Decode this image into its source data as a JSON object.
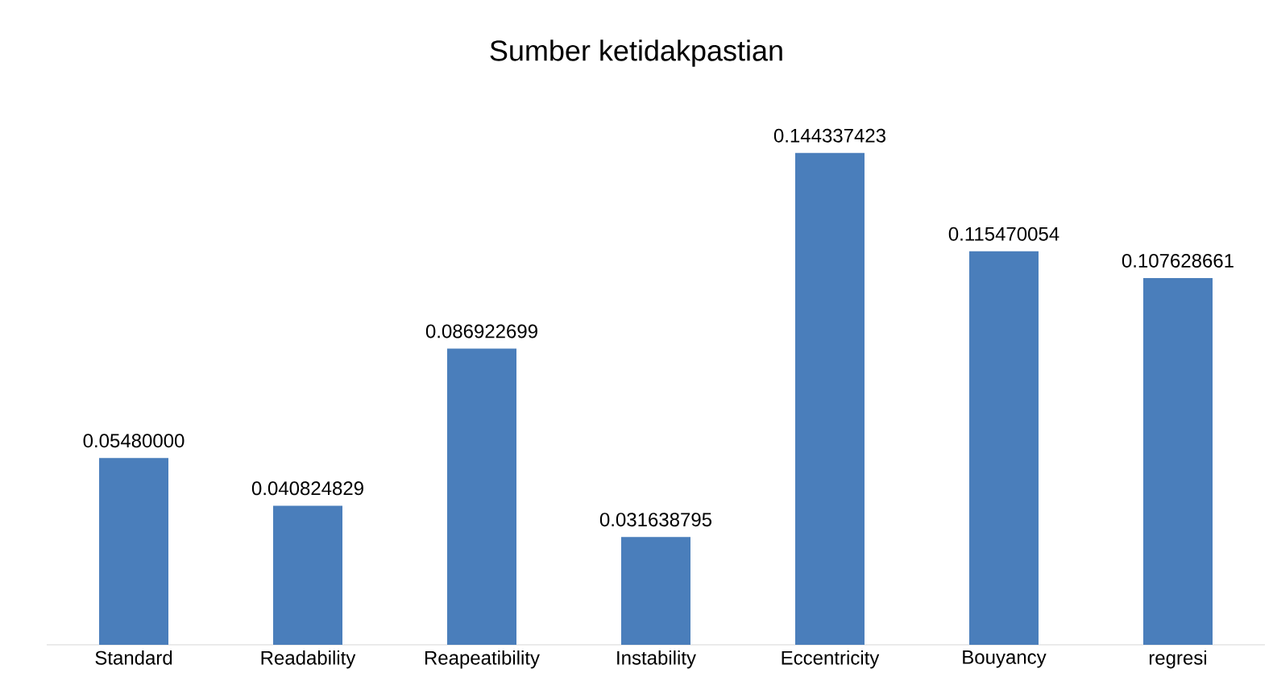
{
  "chart_data": {
    "type": "bar",
    "title": "Sumber ketidakpastian",
    "categories": [
      "Standard",
      "Readability",
      "Reapeatibility",
      "Instability",
      "Eccentricity",
      "Bouyancy",
      "regresi"
    ],
    "values": [
      0.0548,
      0.040824829,
      0.086922699,
      0.031638795,
      0.144337423,
      0.115470054,
      0.107628661
    ],
    "value_labels": [
      "0.05480000",
      "0.040824829",
      "0.086922699",
      "0.031638795",
      "0.144337423",
      "0.115470054",
      "0.107628661"
    ],
    "color": "#4a7ebb"
  }
}
